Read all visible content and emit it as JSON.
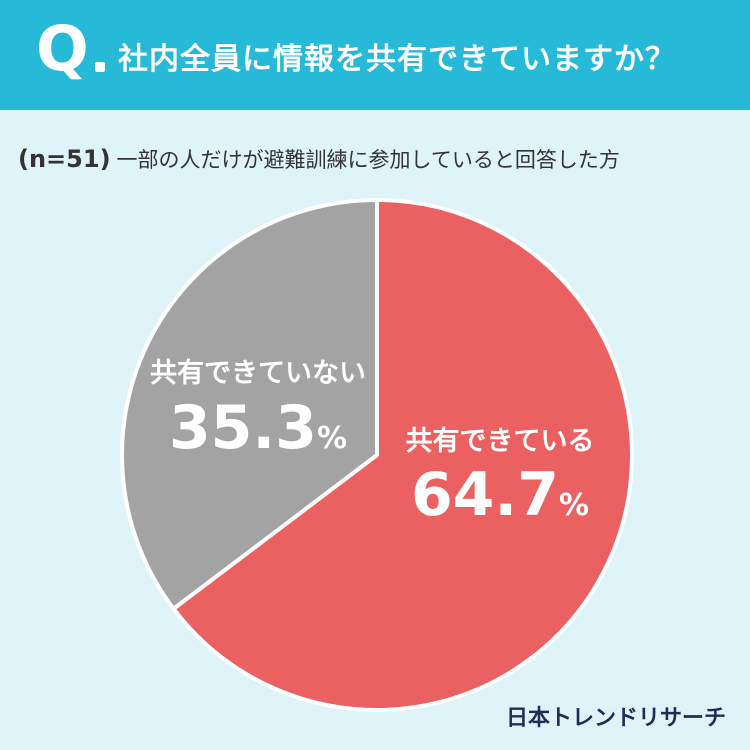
{
  "header": {
    "q_mark": "Q",
    "question": "社内全員に情報を共有できていますか？"
  },
  "subtitle": {
    "n": "(n=51)",
    "text": "一部の人だけが避難訓練に参加していると回答した方"
  },
  "chart_data": {
    "type": "pie",
    "slices": [
      {
        "label": "共有できている",
        "value": 64.7,
        "display": "64.7",
        "unit": "%",
        "color": "#eb6060"
      },
      {
        "label": "共有できていない",
        "value": 35.3,
        "display": "35.3",
        "unit": "%",
        "color": "#a3a3a3"
      }
    ]
  },
  "brand": "日本トレンドリサーチ"
}
